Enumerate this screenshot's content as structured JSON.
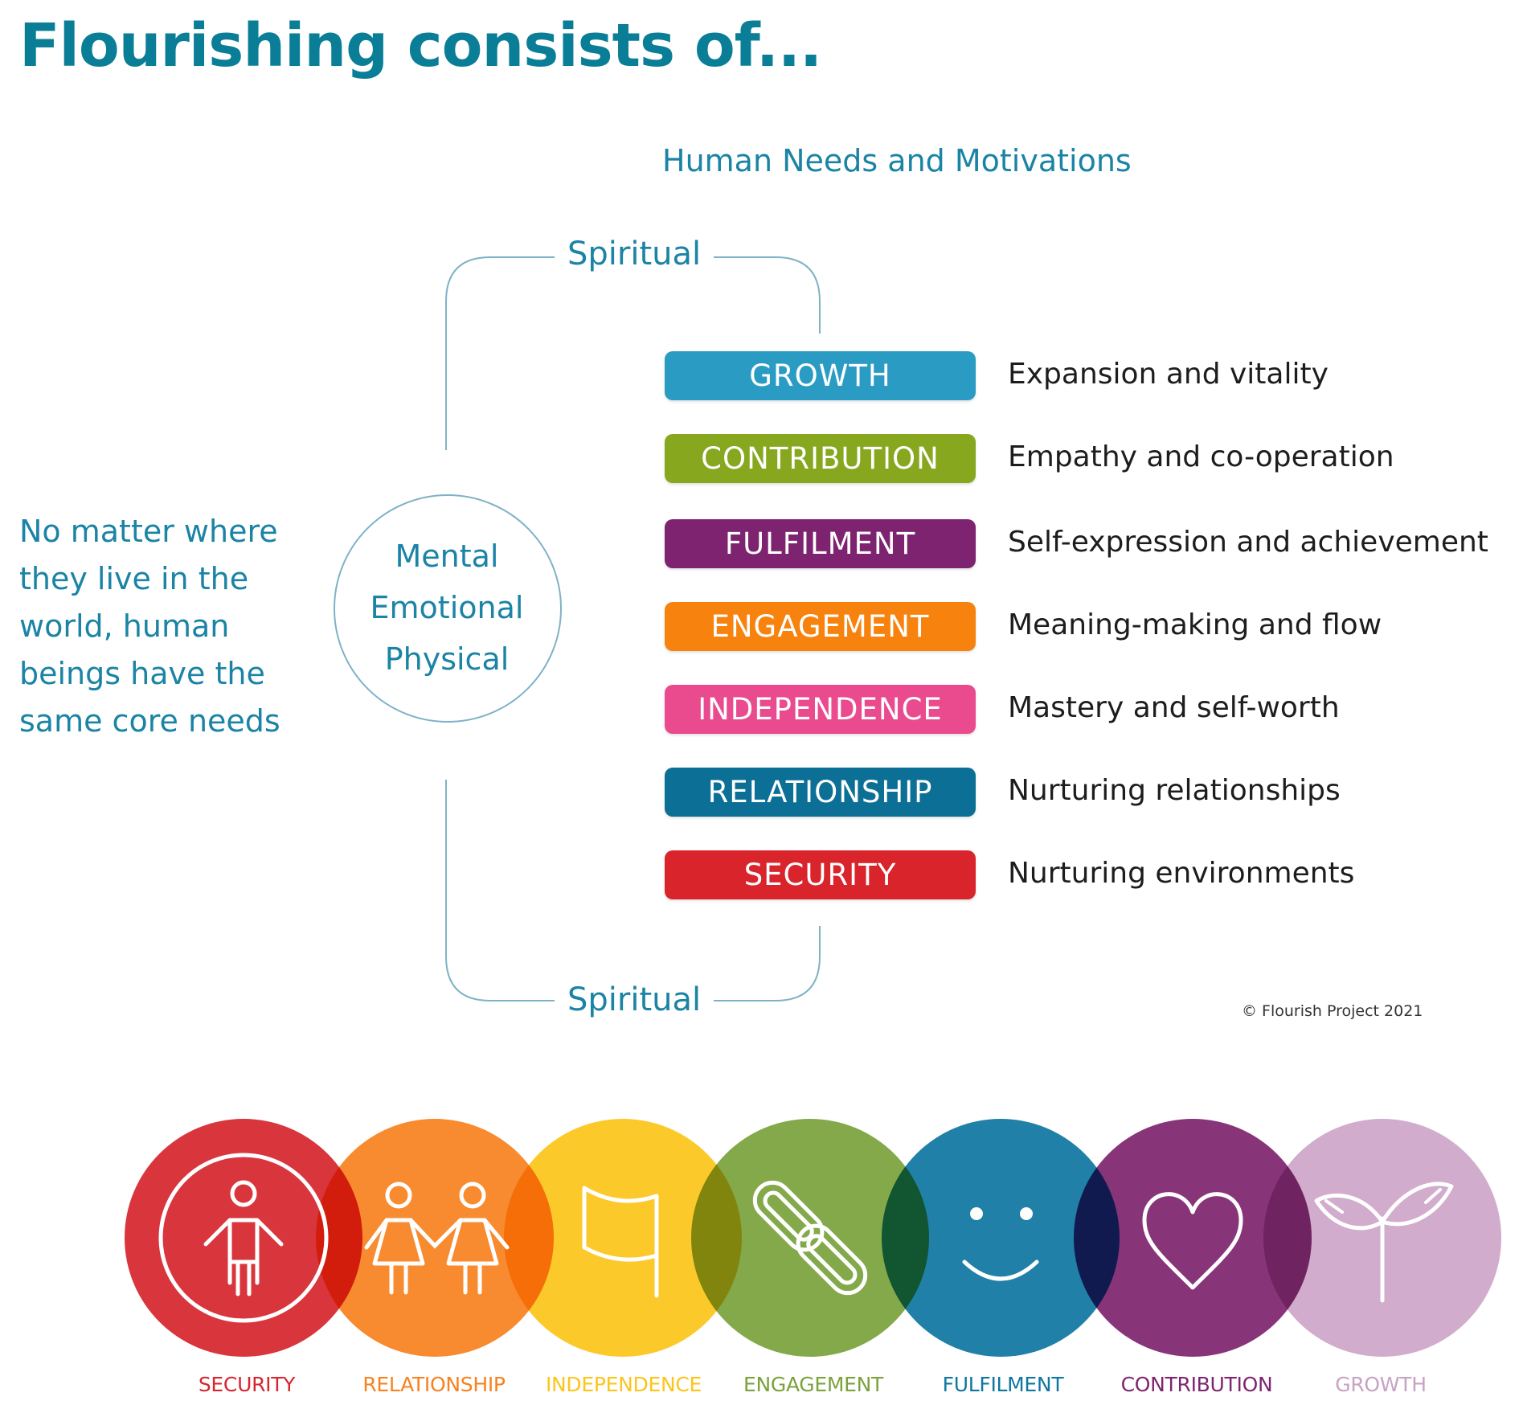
{
  "title": "Flourishing consists of...",
  "subtitle": "Human Needs and Motivations",
  "spiritual_top": "Spiritual",
  "spiritual_bottom": "Spiritual",
  "left_text": [
    "No matter where",
    "they live in the",
    "world, human",
    "beings have the",
    "same core needs"
  ],
  "circle_lines": [
    "Mental",
    "Emotional",
    "Physical"
  ],
  "needs": [
    {
      "label": "GROWTH",
      "desc": "Expansion and vitality",
      "color": "#2a9cc4"
    },
    {
      "label": "CONTRIBUTION",
      "desc": "Empathy and co-operation",
      "color": "#86a71e"
    },
    {
      "label": "FULFILMENT",
      "desc": "Self-expression and achievement",
      "color": "#7d236f"
    },
    {
      "label": "ENGAGEMENT",
      "desc": "Meaning-making and flow",
      "color": "#f7820e"
    },
    {
      "label": "INDEPENDENCE",
      "desc": "Mastery and self-worth",
      "color": "#ea4a8e"
    },
    {
      "label": "RELATIONSHIP",
      "desc": "Nurturing relationships",
      "color": "#0b6f96"
    },
    {
      "label": "SECURITY",
      "desc": "Nurturing environments",
      "color": "#d9242c"
    }
  ],
  "copyright": "© Flourish Project 2021",
  "bottom_circles": [
    {
      "label": "SECURITY",
      "icon": "person-icon",
      "color": "#d6262e",
      "label_color": "#d6262e"
    },
    {
      "label": "RELATIONSHIP",
      "icon": "two-people-icon",
      "color": "#f7821f",
      "label_color": "#f7821f"
    },
    {
      "label": "INDEPENDENCE",
      "icon": "flag-icon",
      "color": "#fcc51b",
      "label_color": "#fcc51b"
    },
    {
      "label": "ENGAGEMENT",
      "icon": "chain-link-icon",
      "color": "#7ba23c",
      "label_color": "#7ba23c"
    },
    {
      "label": "FULFILMENT",
      "icon": "smiley-icon",
      "color": "#0f76a0",
      "label_color": "#0f76a0"
    },
    {
      "label": "CONTRIBUTION",
      "icon": "heart-icon",
      "color": "#7f256f",
      "label_color": "#7f256f"
    },
    {
      "label": "GROWTH",
      "icon": "sprout-icon",
      "color": "#cea6c8",
      "label_color": "#c7a3c2"
    }
  ]
}
